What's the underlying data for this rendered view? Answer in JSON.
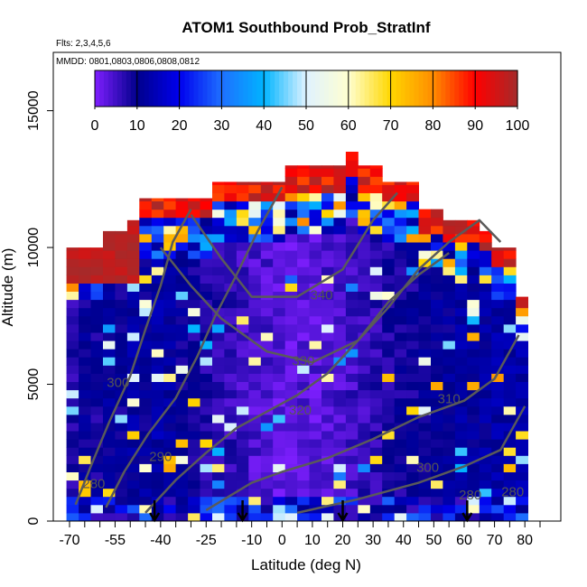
{
  "chart_data": {
    "type": "heatmap",
    "title": "ATOM1 Southbound Prob_StratInf",
    "subtitle": "Flts: 2,3,4,5,6",
    "annotation": "MMDD: 0801,0803,0806,0808,0812",
    "xlabel": "Latitude (deg N)",
    "ylabel": "Altitude (m)",
    "xlim": [
      -70,
      85
    ],
    "ylim": [
      0,
      17000
    ],
    "x_ticks": [
      -70,
      -55,
      -40,
      -25,
      -10,
      0,
      10,
      20,
      30,
      40,
      50,
      60,
      70,
      80
    ],
    "x_tick_labels": [
      "-70",
      "-55",
      "-40",
      "-25",
      "-10",
      "0",
      "10",
      "20",
      "30",
      "40",
      "50",
      "60",
      "70",
      "80"
    ],
    "y_ticks": [
      0,
      5000,
      10000,
      15000
    ],
    "y_tick_labels": [
      "0",
      "5000",
      "10000",
      "15000"
    ],
    "colorbar": {
      "range": [
        0,
        100
      ],
      "ticks": [
        0,
        10,
        20,
        30,
        40,
        50,
        60,
        70,
        80,
        90,
        100
      ],
      "tick_labels": [
        "0",
        "10",
        "20",
        "30",
        "40",
        "50",
        "60",
        "70",
        "80",
        "90",
        "100"
      ],
      "colors": [
        "#7f1fff",
        "#00008b",
        "#0000ee",
        "#1e6fff",
        "#00b4ff",
        "#dff2ff",
        "#ffffd0",
        "#ffd700",
        "#ff8c00",
        "#ff0000",
        "#a52a2a"
      ]
    },
    "contour_labels": [
      {
        "text": "340",
        "x": 13,
        "y": 8100
      },
      {
        "text": "330",
        "x": 7,
        "y": 5700
      },
      {
        "text": "320",
        "x": 6,
        "y": 3900
      },
      {
        "text": "310",
        "x": 55,
        "y": 4300
      },
      {
        "text": "300",
        "x": -54,
        "y": 4900
      },
      {
        "text": "290",
        "x": -40,
        "y": 2200
      },
      {
        "text": "280",
        "x": -62,
        "y": 1200
      },
      {
        "text": "300",
        "x": 48,
        "y": 1800
      },
      {
        "text": "280",
        "x": 62,
        "y": 800
      },
      {
        "text": "280",
        "x": 76,
        "y": 900
      }
    ],
    "flight_arrows_x": [
      -42,
      -13,
      20,
      61
    ],
    "columns": [
      {
        "x": -69,
        "top": 10000,
        "base": 6
      },
      {
        "x": -65,
        "top": 10000,
        "base": 9
      },
      {
        "x": -61,
        "top": 10000,
        "base": 8
      },
      {
        "x": -57,
        "top": 10600,
        "base": 10
      },
      {
        "x": -53,
        "top": 10600,
        "base": 9
      },
      {
        "x": -49,
        "top": 11000,
        "base": 11
      },
      {
        "x": -45,
        "top": 11800,
        "base": 10
      },
      {
        "x": -41,
        "top": 11800,
        "base": 12
      },
      {
        "x": -37,
        "top": 11800,
        "base": 11
      },
      {
        "x": -33,
        "top": 11800,
        "base": 9
      },
      {
        "x": -29,
        "top": 11800,
        "base": 8
      },
      {
        "x": -25,
        "top": 11800,
        "base": 7
      },
      {
        "x": -21,
        "top": 12400,
        "base": 6
      },
      {
        "x": -17,
        "top": 12400,
        "base": 5
      },
      {
        "x": -13,
        "top": 12400,
        "base": 4
      },
      {
        "x": -9,
        "top": 12400,
        "base": 3
      },
      {
        "x": -5,
        "top": 12400,
        "base": 3
      },
      {
        "x": -1,
        "top": 12400,
        "base": 2
      },
      {
        "x": 3,
        "top": 13000,
        "base": 2
      },
      {
        "x": 7,
        "top": 13000,
        "base": 2
      },
      {
        "x": 11,
        "top": 13000,
        "base": 2
      },
      {
        "x": 15,
        "top": 13000,
        "base": 3
      },
      {
        "x": 19,
        "top": 13000,
        "base": 3
      },
      {
        "x": 23,
        "top": 13500,
        "base": 4
      },
      {
        "x": 27,
        "top": 13000,
        "base": 5
      },
      {
        "x": 31,
        "top": 13000,
        "base": 6
      },
      {
        "x": 35,
        "top": 12400,
        "base": 7
      },
      {
        "x": 39,
        "top": 12400,
        "base": 8
      },
      {
        "x": 43,
        "top": 12400,
        "base": 8
      },
      {
        "x": 47,
        "top": 11400,
        "base": 9
      },
      {
        "x": 51,
        "top": 11400,
        "base": 10
      },
      {
        "x": 55,
        "top": 11000,
        "base": 10
      },
      {
        "x": 59,
        "top": 11000,
        "base": 11
      },
      {
        "x": 63,
        "top": 11000,
        "base": 11
      },
      {
        "x": 67,
        "top": 10600,
        "base": 11
      },
      {
        "x": 71,
        "top": 10000,
        "base": 12
      },
      {
        "x": 75,
        "top": 10000,
        "base": 12
      },
      {
        "x": 79,
        "top": 8200,
        "base": 12
      }
    ]
  }
}
